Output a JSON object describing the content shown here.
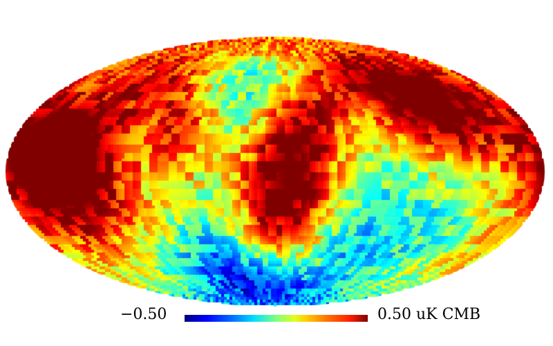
{
  "map": {
    "projection": "mollweide",
    "colormap": "jet",
    "unit": "uK CMB",
    "min": -0.5,
    "max": 0.5,
    "regions": [
      {
        "lon": 145,
        "lat": 15,
        "value": 0.4
      },
      {
        "lon": 125,
        "lat": -10,
        "value": 0.35
      },
      {
        "lon": 160,
        "lat": 0,
        "value": 0.28
      },
      {
        "lon": 60,
        "lat": 25,
        "value": 0.3
      },
      {
        "lon": -15,
        "lat": 30,
        "value": 0.4
      },
      {
        "lon": -5,
        "lat": -5,
        "value": 0.42
      },
      {
        "lon": -8,
        "lat": -35,
        "value": 0.22
      },
      {
        "lon": -95,
        "lat": 40,
        "value": 0.35
      },
      {
        "lon": -130,
        "lat": 35,
        "value": 0.4
      },
      {
        "lon": -175,
        "lat": 20,
        "value": 0.18
      },
      {
        "lon": 20,
        "lat": 45,
        "value": -0.38
      },
      {
        "lon": 35,
        "lat": 0,
        "value": -0.05
      },
      {
        "lon": 85,
        "lat": -5,
        "value": 0.02
      },
      {
        "lon": 50,
        "lat": -55,
        "value": -0.28
      },
      {
        "lon": 15,
        "lat": -70,
        "value": -0.2
      },
      {
        "lon": -55,
        "lat": -45,
        "value": -0.25
      },
      {
        "lon": -80,
        "lat": 5,
        "value": -0.1
      },
      {
        "lon": -120,
        "lat": -30,
        "value": -0.12
      },
      {
        "lon": -165,
        "lat": -35,
        "value": 0.05
      },
      {
        "lon": 175,
        "lat": -40,
        "value": 0.08
      },
      {
        "lon": 100,
        "lat": 60,
        "value": 0.25
      },
      {
        "lon": -60,
        "lat": 65,
        "value": 0.1
      }
    ]
  },
  "colorbar": {
    "min_label": "−0.50",
    "max_label": "0.50 uK CMB"
  }
}
